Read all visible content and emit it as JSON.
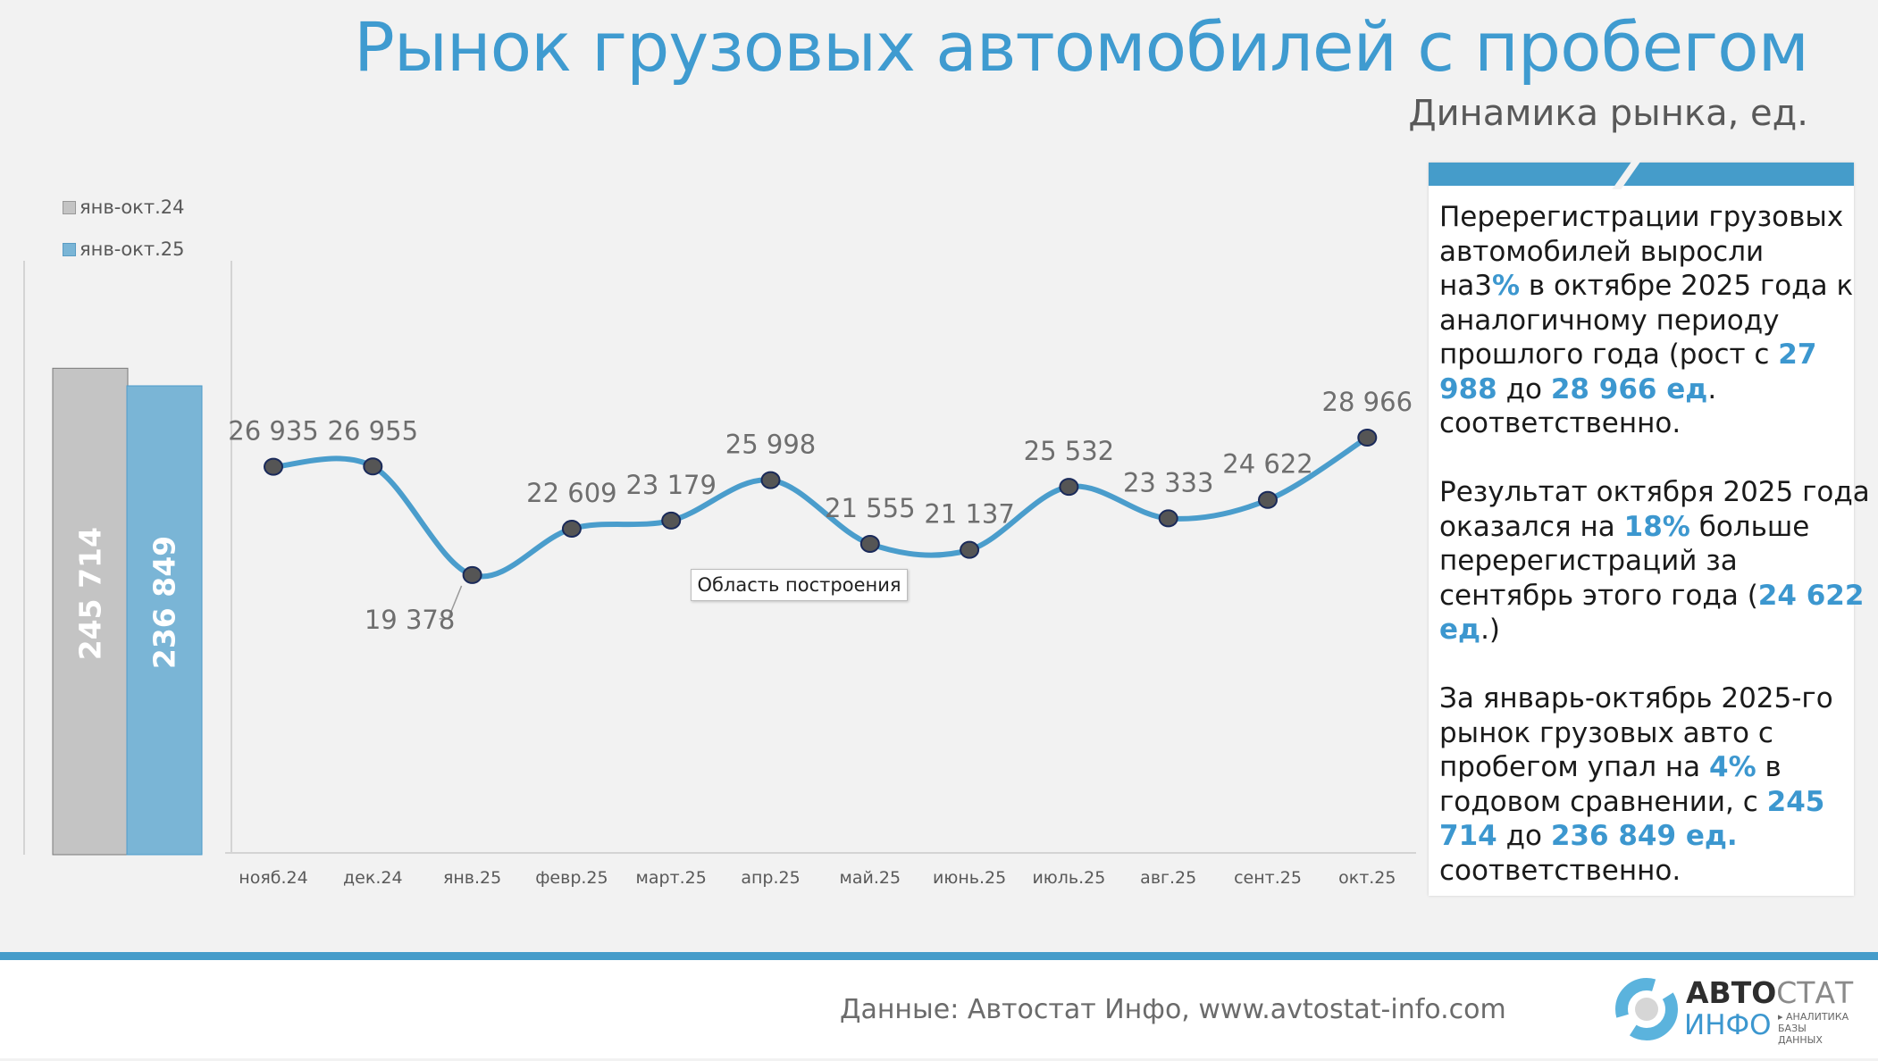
{
  "header": {
    "title": "Рынок грузовых автомобилей с пробегом",
    "subtitle": "Динамика рынка, ед."
  },
  "colors": {
    "accent": "#3f9bd0",
    "line": "#4a9dcc",
    "bar_2024": "#c4c4c4",
    "bar_2025": "#7ab5d6",
    "marker": "#555555"
  },
  "chart_data": [
    {
      "type": "bar",
      "categories": [
        ""
      ],
      "series": [
        {
          "name": "янв-окт.24",
          "values": [
            245714
          ],
          "label": "245 714",
          "color": "#c4c4c4"
        },
        {
          "name": "янв-окт.25",
          "values": [
            236849
          ],
          "label": "236 849",
          "color": "#7ab5d6"
        }
      ],
      "ylim": [
        0,
        300000
      ],
      "legend": "top-left",
      "grid": false
    },
    {
      "type": "line",
      "categories": [
        "нояб.24",
        "дек.24",
        "янв.25",
        "февр.25",
        "март.25",
        "апр.25",
        "май.25",
        "июнь.25",
        "июль.25",
        "авг.25",
        "сент.25",
        "окт.25"
      ],
      "values": [
        26935,
        26955,
        19378,
        22609,
        23179,
        25998,
        21555,
        21137,
        25532,
        23333,
        24622,
        28966
      ],
      "data_labels": [
        "26 935",
        "26 955",
        "19 378",
        "22 609",
        "23 179",
        "25 998",
        "21 555",
        "21 137",
        "25 532",
        "23 333",
        "24 622",
        "28 966"
      ],
      "ylim": [
        0,
        41300
      ],
      "smooth": true,
      "grid": false
    }
  ],
  "tooltip": "Область построения",
  "panel": {
    "paragraphs": [
      [
        [
          {
            "t": "Перерегистрации грузовых"
          }
        ],
        [
          {
            "t": "автомобилей выросли"
          }
        ],
        [
          {
            "t": "на3"
          },
          {
            "t": "%",
            "hl": true
          },
          {
            "t": " в октябре 2025 года к"
          }
        ],
        [
          {
            "t": "аналогичному периоду"
          }
        ],
        [
          {
            "t": "прошлого года (рост с "
          },
          {
            "t": "27",
            "hl": true
          }
        ],
        [
          {
            "t": "988",
            "hl": true
          },
          {
            "t": " до "
          },
          {
            "t": "28 966 ед",
            "hl": true
          },
          {
            "t": "."
          }
        ],
        [
          {
            "t": "соответственно."
          }
        ]
      ],
      [
        [
          {
            "t": "Результат октября 2025 года"
          }
        ],
        [
          {
            "t": "оказался на "
          },
          {
            "t": "18%",
            "hl": true
          },
          {
            "t": " больше"
          }
        ],
        [
          {
            "t": "перерегистраций за"
          }
        ],
        [
          {
            "t": "сентябрь этого года ("
          },
          {
            "t": "24 622",
            "hl": true
          }
        ],
        [
          {
            "t": "ед",
            "hl": true
          },
          {
            "t": ".)"
          }
        ]
      ],
      [
        [
          {
            "t": "За январь-октябрь 2025-го"
          }
        ],
        [
          {
            "t": "рынок грузовых авто с"
          }
        ],
        [
          {
            "t": "пробегом упал на "
          },
          {
            "t": "4%",
            "hl": true
          },
          {
            "t": " в"
          }
        ],
        [
          {
            "t": "годовом сравнении, с "
          },
          {
            "t": "245",
            "hl": true
          }
        ],
        [
          {
            "t": "714",
            "hl": true
          },
          {
            "t": " до "
          },
          {
            "t": "236 849 ед.",
            "hl": true
          }
        ],
        [
          {
            "t": "соответственно."
          }
        ]
      ]
    ]
  },
  "footer": {
    "source": "Данные: Автостат Инфо, www.avtostat-info.com",
    "logo": {
      "line1_bold": "АВТО",
      "line1": "СТАТ",
      "line2": "ИНФО",
      "tag1": "▸ АНАЛИТИКА",
      "tag2": "БАЗЫ ДАННЫХ"
    }
  }
}
